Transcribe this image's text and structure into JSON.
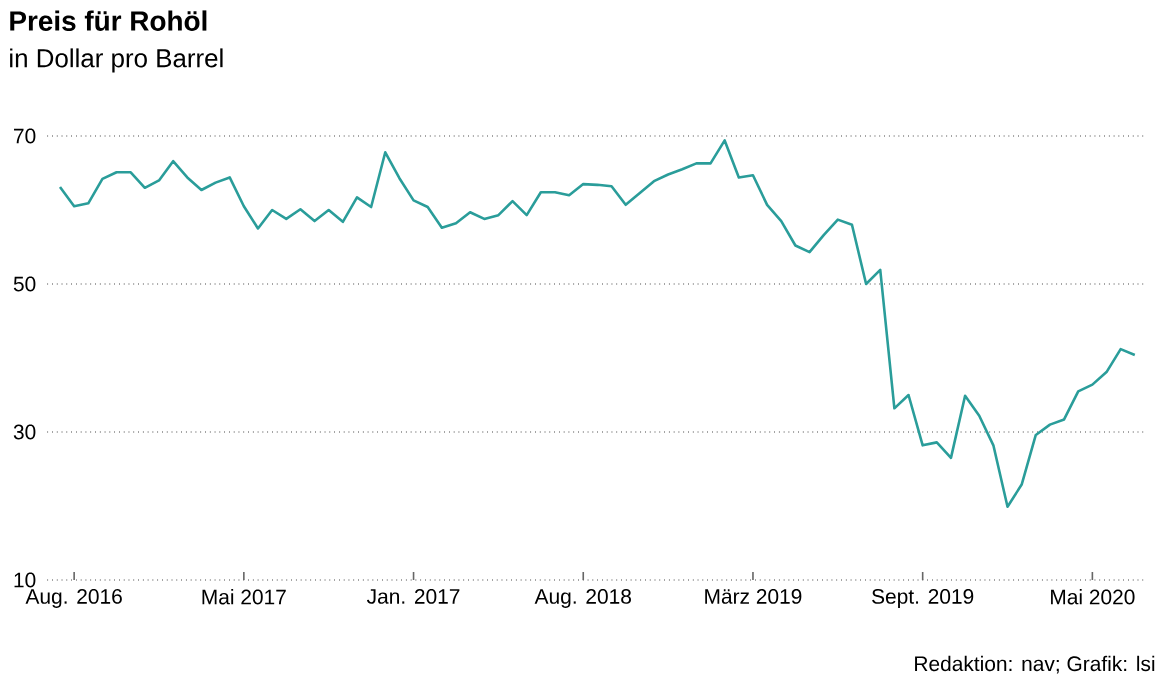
{
  "chart_data": {
    "type": "line",
    "title": "Preis für Rohöl",
    "subtitle": "in Dollar pro Barrel",
    "annotations": [
      "Redaktion: nav; Grafik: lsi"
    ],
    "categories": [
      null,
      "Aug. 2016",
      null,
      null,
      null,
      null,
      null,
      null,
      null,
      null,
      null,
      null,
      null,
      "Mai 2017",
      null,
      null,
      null,
      null,
      null,
      null,
      null,
      null,
      null,
      null,
      null,
      "Jan. 2017",
      null,
      null,
      null,
      null,
      null,
      null,
      null,
      null,
      null,
      null,
      null,
      "Aug. 2018",
      null,
      null,
      null,
      null,
      null,
      null,
      null,
      null,
      null,
      null,
      null,
      "März 2019",
      null,
      null,
      null,
      null,
      null,
      null,
      null,
      null,
      null,
      null,
      null,
      "Sept. 2019",
      null,
      null,
      null,
      null,
      null,
      null,
      null,
      null,
      null,
      null,
      null,
      "Mai 2020",
      null,
      null,
      null
    ],
    "values": [
      63.1,
      60.5,
      60.9,
      64.2,
      65.1,
      65.1,
      63.0,
      64.0,
      66.6,
      64.4,
      62.7,
      63.7,
      64.4,
      60.5,
      57.5,
      60.0,
      58.8,
      60.1,
      58.5,
      60.0,
      58.4,
      61.7,
      60.4,
      67.8,
      64.3,
      61.3,
      60.4,
      57.6,
      58.2,
      59.7,
      58.8,
      59.3,
      61.2,
      59.3,
      62.4,
      62.4,
      62.0,
      63.5,
      63.4,
      63.2,
      60.7,
      62.3,
      63.9,
      64.8,
      65.5,
      66.3,
      66.3,
      69.4,
      64.4,
      64.7,
      60.7,
      58.5,
      55.2,
      54.3,
      56.6,
      58.7,
      58.0,
      50.0,
      51.9,
      33.2,
      35.0,
      28.2,
      28.6,
      26.5,
      34.9,
      32.2,
      28.2,
      19.9,
      22.9,
      29.6,
      31.0,
      31.7,
      35.5,
      36.4,
      38.1,
      41.2,
      40.4
    ],
    "color": "#2a9d9a",
    "line_style": "solid",
    "marker": "none",
    "grid": "y",
    "ylim": [
      10,
      70
    ],
    "yticks": [
      10,
      30,
      50,
      70
    ]
  }
}
